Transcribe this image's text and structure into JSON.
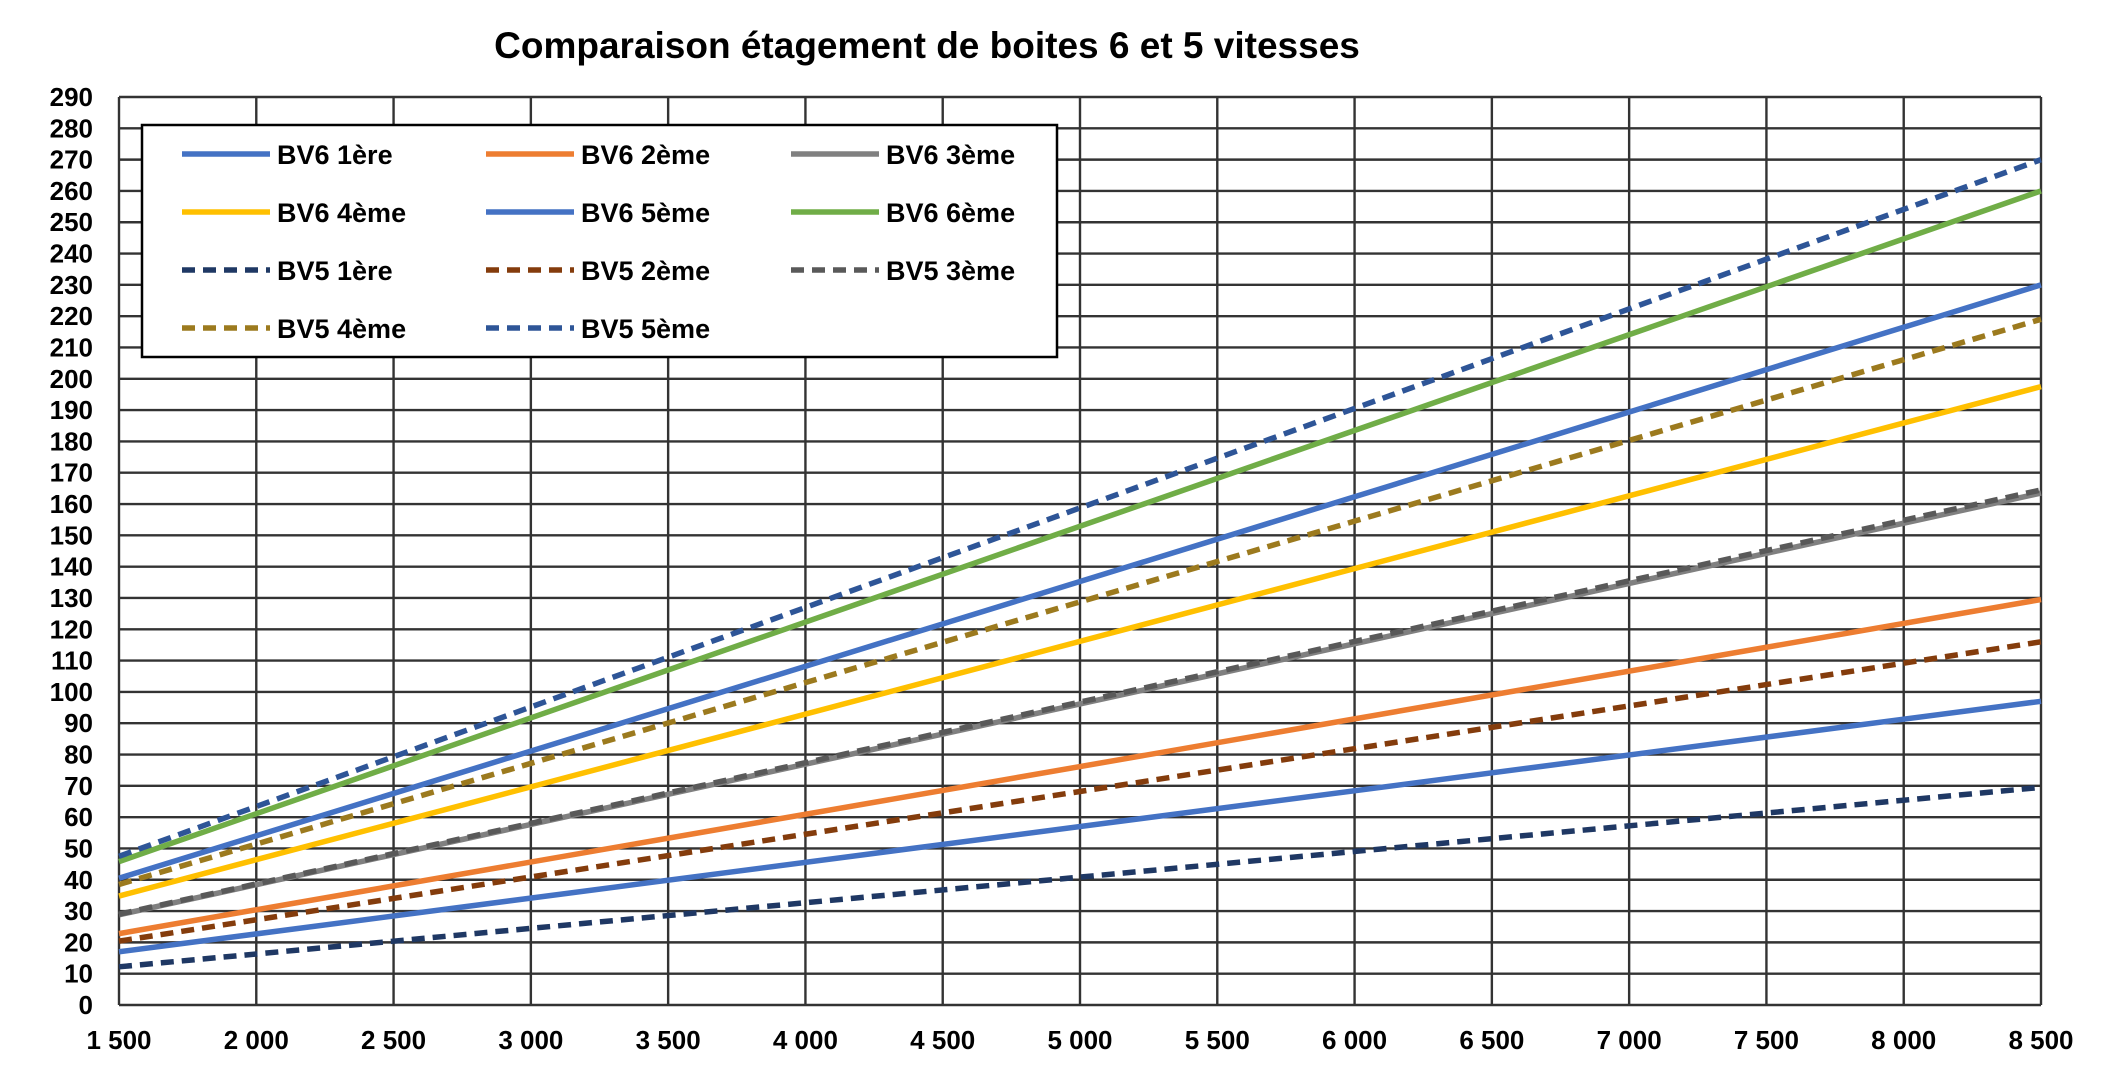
{
  "chart_data": {
    "type": "line",
    "title": "Comparaison étagement de boites 6 et 5 vitesses",
    "xlabel": "",
    "ylabel": "",
    "xlim": [
      1500,
      8500
    ],
    "ylim": [
      0,
      290
    ],
    "x_ticks": [
      1500,
      2000,
      2500,
      3000,
      3500,
      4000,
      4500,
      5000,
      5500,
      6000,
      6500,
      7000,
      7500,
      8000,
      8500
    ],
    "x_tick_labels": [
      "1 500",
      "2 000",
      "2 500",
      "3 000",
      "3 500",
      "4 000",
      "4 500",
      "5 000",
      "5 500",
      "6 000",
      "6 500",
      "7 000",
      "7 500",
      "8 000",
      "8 500"
    ],
    "y_ticks": [
      0,
      10,
      20,
      30,
      40,
      50,
      60,
      70,
      80,
      90,
      100,
      110,
      120,
      130,
      140,
      150,
      160,
      170,
      180,
      190,
      200,
      210,
      220,
      230,
      240,
      250,
      260,
      270,
      280,
      290
    ],
    "y_tick_labels": [
      "0",
      "10",
      "20",
      "30",
      "40",
      "50",
      "60",
      "70",
      "80",
      "90",
      "100",
      "110",
      "120",
      "130",
      "140",
      "150",
      "160",
      "170",
      "180",
      "190",
      "200",
      "210",
      "220",
      "230",
      "240",
      "250",
      "260",
      "270",
      "280",
      "290"
    ],
    "grid": true,
    "legend_position": "top-left",
    "x": [
      1500,
      8500
    ],
    "series": [
      {
        "name": "BV6 1ère",
        "values": [
          17,
          97
        ],
        "color": "#4472C4",
        "dash": "solid"
      },
      {
        "name": "BV6 2ème",
        "values": [
          22.8,
          129.5
        ],
        "color": "#ED7D31",
        "dash": "solid"
      },
      {
        "name": "BV6 3ème",
        "values": [
          28.8,
          163.5
        ],
        "color": "#808080",
        "dash": "solid"
      },
      {
        "name": "BV6 4ème",
        "values": [
          34.8,
          197.5
        ],
        "color": "#FFC000",
        "dash": "solid"
      },
      {
        "name": "BV6 5ème",
        "values": [
          40.5,
          230
        ],
        "color": "#4472C4",
        "dash": "solid"
      },
      {
        "name": "BV6 6ème",
        "values": [
          45.8,
          260
        ],
        "color": "#70AD47",
        "dash": "solid"
      },
      {
        "name": "BV5 1ère",
        "values": [
          12.2,
          69.5
        ],
        "color": "#1F3864",
        "dash": "dashed"
      },
      {
        "name": "BV5 2ème",
        "values": [
          20.4,
          116
        ],
        "color": "#843C0C",
        "dash": "dashed"
      },
      {
        "name": "BV5 3ème",
        "values": [
          29,
          164.5
        ],
        "color": "#595959",
        "dash": "dashed"
      },
      {
        "name": "BV5 4ème",
        "values": [
          38.5,
          219
        ],
        "color": "#9C7A1E",
        "dash": "dashed"
      },
      {
        "name": "BV5 5ème",
        "values": [
          47.5,
          270
        ],
        "color": "#2E5597",
        "dash": "dashed"
      }
    ]
  }
}
